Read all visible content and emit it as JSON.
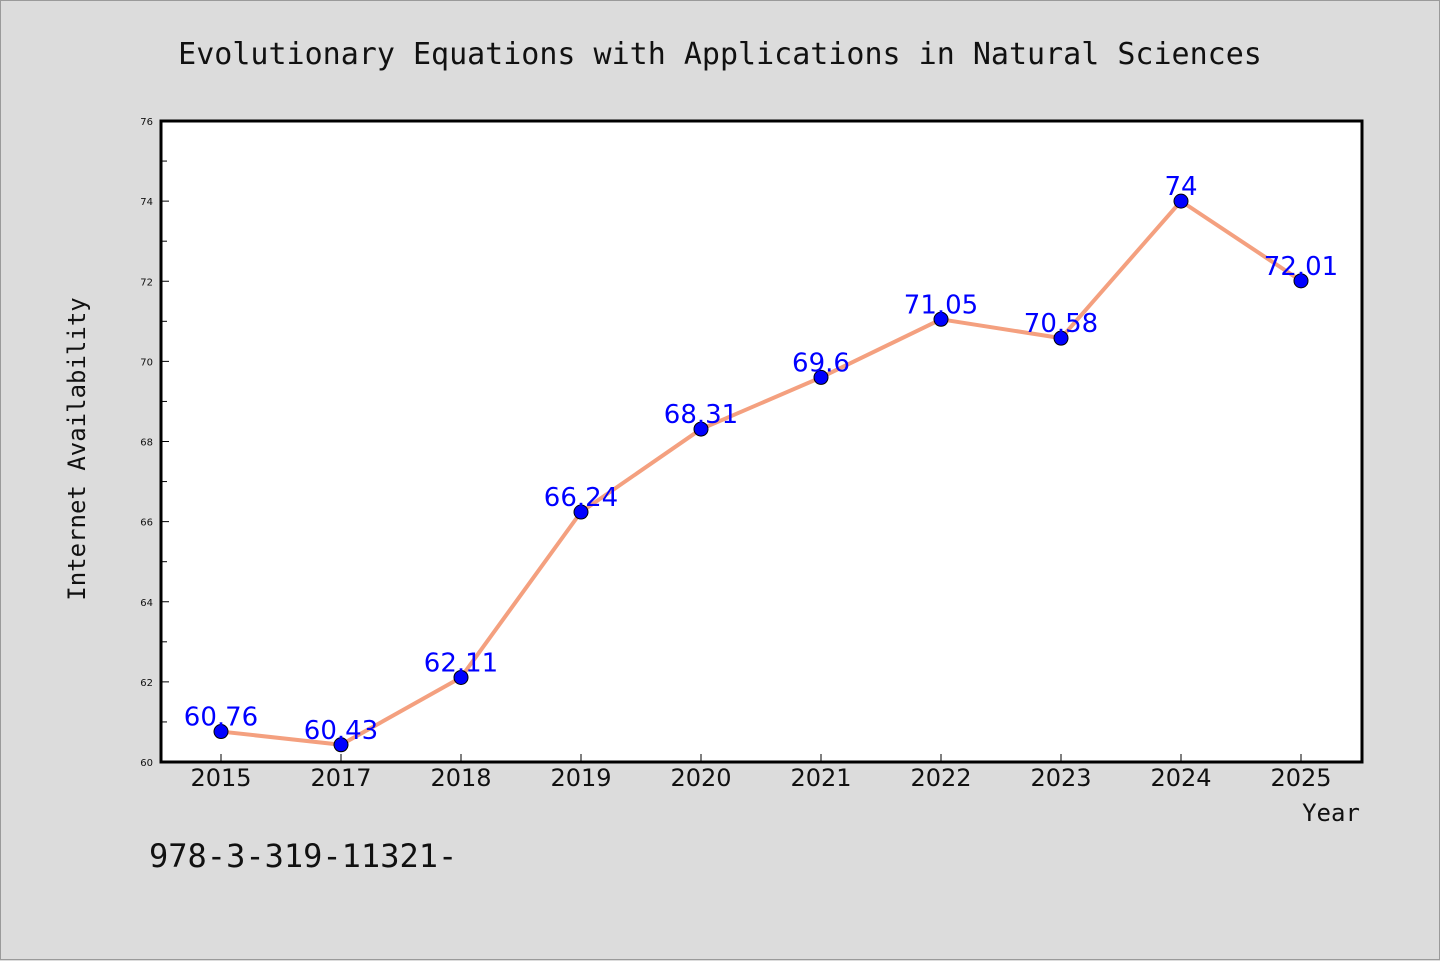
{
  "chart_data": {
    "type": "line",
    "title": "Evolutionary Equations with Applications in Natural Sciences",
    "xlabel": "Year",
    "ylabel": "Internet Availability",
    "categories": [
      "2015",
      "2017",
      "2018",
      "2019",
      "2020",
      "2021",
      "2022",
      "2023",
      "2024",
      "2025"
    ],
    "series": [
      {
        "values": [
          60.76,
          60.43,
          62.11,
          66.24,
          68.31,
          69.6,
          71.05,
          70.58,
          74,
          72.01
        ],
        "data_labels": [
          "60.76",
          "60.43",
          "62.11",
          "66.24",
          "68.31",
          "69.6",
          "71.05",
          "70.58",
          "74",
          "72.01"
        ]
      }
    ],
    "ylim": [
      60,
      76
    ],
    "yticks": [
      "60",
      "62",
      "64",
      "66",
      "68",
      "70",
      "72",
      "74",
      "76"
    ],
    "grid": false,
    "legend": "none",
    "colors": {
      "line": "#f4a07f",
      "marker": "#0000ff",
      "data_label": "#0000ff",
      "background": "#dcdcdc",
      "plot_area": "#ffffff"
    }
  },
  "footer": {
    "text": "978-3-319-11321-"
  }
}
